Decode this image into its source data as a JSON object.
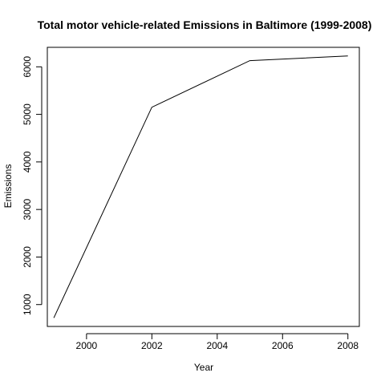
{
  "chart_data": {
    "type": "line",
    "title": "Total motor vehicle-related Emissions in Baltimore (1999-2008)",
    "xlabel": "Year",
    "ylabel": "Emissions",
    "x": [
      1999,
      2002,
      2005,
      2008
    ],
    "series": [
      {
        "values": [
          720,
          5150,
          6130,
          6230
        ]
      }
    ],
    "xlim": [
      1998.8,
      2008.35
    ],
    "ylim": [
      540,
      6410
    ],
    "x_ticks": [
      2000,
      2002,
      2004,
      2006,
      2008
    ],
    "y_ticks": [
      1000,
      2000,
      3000,
      4000,
      5000,
      6000
    ],
    "grid": false,
    "legend": "none",
    "colors": {
      "line": "#000000",
      "axis": "#000000",
      "background": "#ffffff"
    }
  }
}
